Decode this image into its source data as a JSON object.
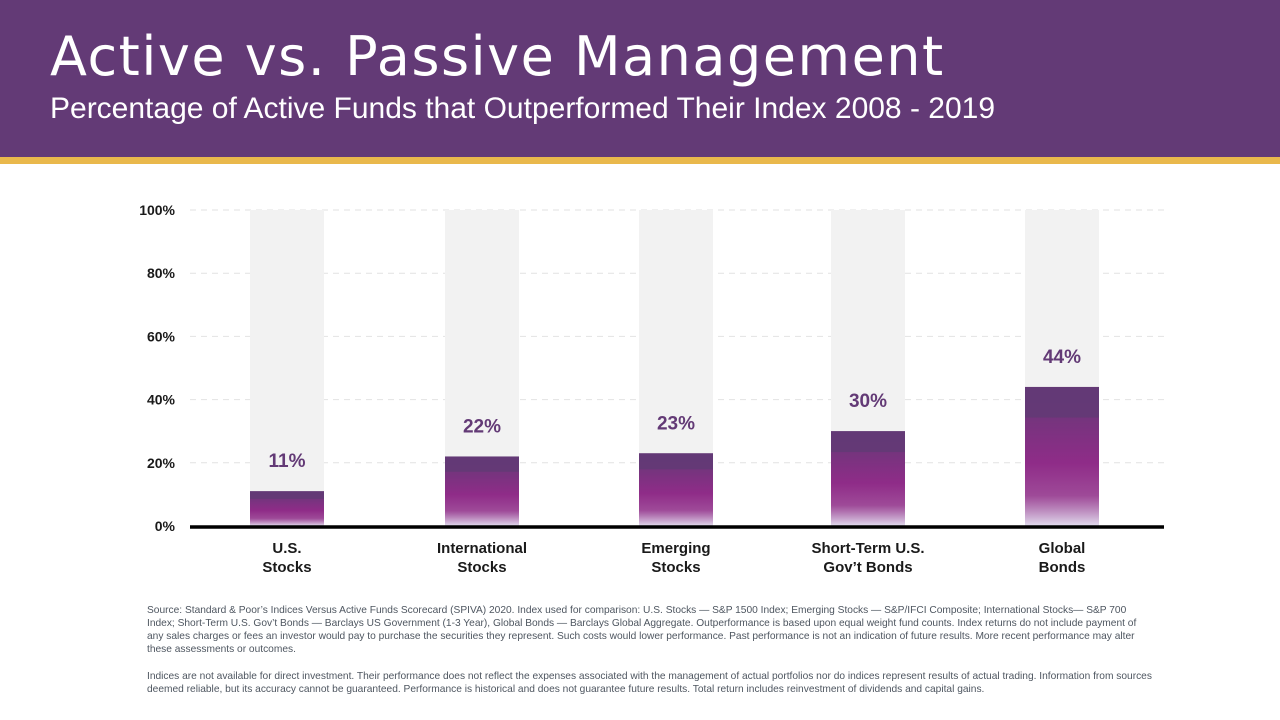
{
  "header": {
    "title": "Active vs. Passive Management",
    "subtitle": "Percentage of Active Funds that Outperformed Their Index 2008 - 2019"
  },
  "chart_data": {
    "type": "bar",
    "categories": [
      [
        "U.S.",
        "Stocks"
      ],
      [
        "International",
        "Stocks"
      ],
      [
        "Emerging",
        "Stocks"
      ],
      [
        "Short-Term U.S.",
        "Gov’t Bonds"
      ],
      [
        "Global",
        "Bonds"
      ]
    ],
    "values": [
      11,
      22,
      23,
      30,
      44
    ],
    "data_labels": [
      "11%",
      "22%",
      "23%",
      "30%",
      "44%"
    ],
    "ylim": [
      0,
      100
    ],
    "yticks": [
      0,
      20,
      40,
      60,
      80,
      100
    ],
    "ytick_labels": [
      "0%",
      "20%",
      "40%",
      "60%",
      "80%",
      "100%"
    ],
    "grid": true,
    "legend": "none",
    "colors": {
      "bar_top": "#633a76",
      "bar_mid": "#8f2c88",
      "bar_bottom": "#e2dcee",
      "track": "#f2f2f2",
      "label": "#633a76"
    }
  },
  "footnotes": {
    "source": "Source: Standard & Poor’s Indices Versus Active Funds Scorecard (SPIVA) 2020. Index used for comparison: U.S. Stocks — S&P 1500 Index; Emerging Stocks — S&P/IFCI Composite; International Stocks— S&P 700 Index; Short-Term U.S. Gov’t Bonds — Barclays US Government (1-3 Year), Global Bonds — Barclays Global Aggregate. Outperformance is based upon equal weight fund counts. Index returns do not include payment of any sales charges or fees an investor would pay to purchase the securities they represent. Such costs would lower performance. Past performance is not an indication of future results. More recent performance may alter these assessments or outcomes.",
    "disclaimer": "Indices are not available for direct investment. Their performance does not reflect the expenses associated with the management of actual portfolios nor do indices represent results of actual trading. Information from sources deemed reliable, but its accuracy cannot be guaranteed. Performance is historical and does not guarantee future results.  Total return includes reinvestment of dividends and capital gains."
  }
}
